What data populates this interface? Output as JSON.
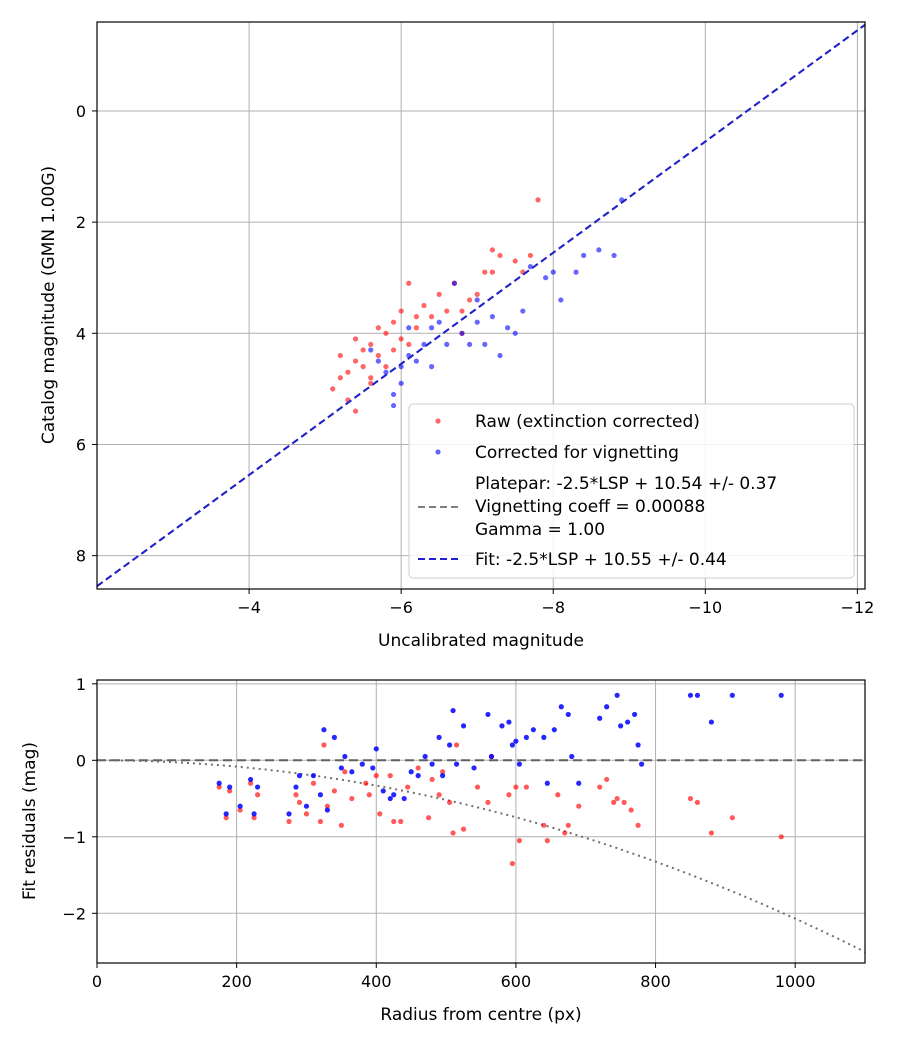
{
  "chart_data": [
    {
      "type": "scatter",
      "xlabel": "Uncalibrated magnitude",
      "ylabel": "Catalog magnitude (GMN 1.00G)",
      "xlim": [
        -2,
        -12.1
      ],
      "ylim": [
        8.6,
        -1.6
      ],
      "xticks": [
        -4,
        -6,
        -8,
        -10,
        -12
      ],
      "xtick_labels": [
        "−4",
        "−6",
        "−8",
        "−10",
        "−12"
      ],
      "yticks": [
        0,
        2,
        4,
        6,
        8
      ],
      "ytick_labels": [
        "0",
        "2",
        "4",
        "6",
        "8"
      ],
      "grid": true,
      "legend_position": "bottom-right",
      "colors": {
        "raw": "#ff0000",
        "corrected": "#0000ff",
        "fit": "#2020d0",
        "platepar": "#808080"
      },
      "series": [
        {
          "name": "Raw (extinction corrected)",
          "color": "#ff0000",
          "points": [
            [
              -5.1,
              5.0
            ],
            [
              -5.2,
              4.8
            ],
            [
              -5.3,
              4.7
            ],
            [
              -5.3,
              5.2
            ],
            [
              -5.4,
              4.5
            ],
            [
              -5.4,
              4.1
            ],
            [
              -5.5,
              4.6
            ],
            [
              -5.5,
              4.3
            ],
            [
              -5.6,
              4.2
            ],
            [
              -5.6,
              4.9
            ],
            [
              -5.7,
              3.9
            ],
            [
              -5.7,
              4.4
            ],
            [
              -5.8,
              4.6
            ],
            [
              -5.8,
              4.0
            ],
            [
              -5.9,
              3.8
            ],
            [
              -5.9,
              4.3
            ],
            [
              -6.0,
              4.1
            ],
            [
              -6.0,
              3.6
            ],
            [
              -6.1,
              3.1
            ],
            [
              -6.1,
              4.2
            ],
            [
              -6.2,
              3.9
            ],
            [
              -6.3,
              3.5
            ],
            [
              -6.4,
              3.7
            ],
            [
              -6.5,
              3.3
            ],
            [
              -6.6,
              3.6
            ],
            [
              -6.7,
              3.1
            ],
            [
              -6.8,
              3.6
            ],
            [
              -6.9,
              3.4
            ],
            [
              -7.0,
              3.3
            ],
            [
              -7.1,
              2.9
            ],
            [
              -7.2,
              2.9
            ],
            [
              -7.2,
              2.5
            ],
            [
              -7.3,
              2.6
            ],
            [
              -7.5,
              2.7
            ],
            [
              -7.6,
              2.9
            ],
            [
              -7.7,
              2.6
            ],
            [
              -7.8,
              1.6
            ],
            [
              -5.2,
              4.4
            ],
            [
              -5.4,
              5.4
            ],
            [
              -5.6,
              4.8
            ],
            [
              -6.2,
              3.7
            ],
            [
              -6.8,
              4.0
            ]
          ]
        },
        {
          "name": "Corrected for vignetting",
          "color": "#0000ff",
          "points": [
            [
              -5.6,
              4.3
            ],
            [
              -5.7,
              4.5
            ],
            [
              -5.8,
              4.7
            ],
            [
              -5.9,
              5.3
            ],
            [
              -5.9,
              5.1
            ],
            [
              -6.0,
              4.6
            ],
            [
              -6.1,
              4.4
            ],
            [
              -6.1,
              3.9
            ],
            [
              -6.2,
              4.5
            ],
            [
              -6.3,
              4.2
            ],
            [
              -6.4,
              4.6
            ],
            [
              -6.5,
              3.8
            ],
            [
              -6.6,
              4.2
            ],
            [
              -6.7,
              3.1
            ],
            [
              -6.8,
              4.0
            ],
            [
              -6.9,
              4.2
            ],
            [
              -7.0,
              3.8
            ],
            [
              -7.1,
              4.2
            ],
            [
              -7.2,
              3.7
            ],
            [
              -7.3,
              4.4
            ],
            [
              -7.4,
              3.9
            ],
            [
              -7.5,
              4.0
            ],
            [
              -7.6,
              3.6
            ],
            [
              -7.7,
              2.8
            ],
            [
              -7.9,
              3.0
            ],
            [
              -8.0,
              2.9
            ],
            [
              -8.1,
              3.4
            ],
            [
              -8.3,
              2.9
            ],
            [
              -8.4,
              2.6
            ],
            [
              -8.6,
              2.5
            ],
            [
              -8.8,
              2.6
            ],
            [
              -8.9,
              1.6
            ],
            [
              -6.0,
              4.9
            ],
            [
              -6.4,
              3.9
            ],
            [
              -7.0,
              3.4
            ]
          ]
        }
      ],
      "fit_line": {
        "slope": 1.0,
        "intercept": 10.55
      },
      "legend": [
        {
          "label": "Raw (extinction corrected)",
          "kind": "point",
          "color": "#ff0000"
        },
        {
          "label": "Corrected for vignetting",
          "kind": "point",
          "color": "#0000ff"
        },
        {
          "label_lines": [
            "Platepar: -2.5*LSP + 10.54 +/- 0.37",
            "Vignetting coeff = 0.00088",
            "Gamma = 1.00"
          ],
          "kind": "dashed-line",
          "color": "#808080"
        },
        {
          "label": "Fit: -2.5*LSP + 10.55 +/- 0.44",
          "kind": "dashed-line",
          "color": "#2020d0"
        }
      ]
    },
    {
      "type": "scatter",
      "xlabel": "Radius from centre (px)",
      "ylabel": "Fit residuals (mag)",
      "xlim": [
        0,
        1100
      ],
      "ylim": [
        -2.65,
        1.05
      ],
      "xticks": [
        0,
        200,
        400,
        600,
        800,
        1000
      ],
      "xtick_labels": [
        "0",
        "200",
        "400",
        "600",
        "800",
        "1000"
      ],
      "yticks": [
        1,
        0,
        -1,
        -2
      ],
      "ytick_labels": [
        "1",
        "0",
        "−1",
        "−2"
      ],
      "grid": true,
      "zero_line": 0,
      "vignetting_curve": {
        "coeff": 0.00088,
        "description": "model vignetting loss vs radius"
      },
      "series": [
        {
          "name": "Raw",
          "color": "#ff0000",
          "points": [
            [
              175,
              -0.35
            ],
            [
              185,
              -0.75
            ],
            [
              190,
              -0.4
            ],
            [
              205,
              -0.65
            ],
            [
              220,
              -0.3
            ],
            [
              225,
              -0.75
            ],
            [
              230,
              -0.45
            ],
            [
              275,
              -0.8
            ],
            [
              285,
              -0.45
            ],
            [
              290,
              -0.55
            ],
            [
              300,
              -0.7
            ],
            [
              310,
              -0.3
            ],
            [
              320,
              -0.8
            ],
            [
              325,
              0.2
            ],
            [
              330,
              -0.6
            ],
            [
              340,
              -0.4
            ],
            [
              350,
              -0.85
            ],
            [
              355,
              -0.15
            ],
            [
              365,
              -0.5
            ],
            [
              385,
              -0.3
            ],
            [
              390,
              -0.45
            ],
            [
              400,
              -0.2
            ],
            [
              405,
              -0.7
            ],
            [
              420,
              -0.2
            ],
            [
              425,
              -0.8
            ],
            [
              435,
              -0.8
            ],
            [
              445,
              -0.35
            ],
            [
              460,
              -0.1
            ],
            [
              475,
              -0.75
            ],
            [
              480,
              -0.25
            ],
            [
              490,
              -0.45
            ],
            [
              495,
              -0.15
            ],
            [
              505,
              -0.55
            ],
            [
              510,
              -0.95
            ],
            [
              515,
              0.2
            ],
            [
              525,
              -0.9
            ],
            [
              545,
              -0.35
            ],
            [
              560,
              -0.55
            ],
            [
              565,
              0.05
            ],
            [
              590,
              -0.45
            ],
            [
              595,
              -1.35
            ],
            [
              600,
              -0.35
            ],
            [
              605,
              -1.05
            ],
            [
              615,
              -0.35
            ],
            [
              640,
              -0.85
            ],
            [
              645,
              -1.05
            ],
            [
              660,
              -0.45
            ],
            [
              670,
              -0.95
            ],
            [
              675,
              -0.85
            ],
            [
              690,
              -0.6
            ],
            [
              720,
              -0.35
            ],
            [
              730,
              -0.25
            ],
            [
              740,
              -0.55
            ],
            [
              745,
              -0.5
            ],
            [
              755,
              -0.55
            ],
            [
              765,
              -0.65
            ],
            [
              775,
              -0.85
            ],
            [
              850,
              -0.5
            ],
            [
              860,
              -0.55
            ],
            [
              880,
              -0.95
            ],
            [
              910,
              -0.75
            ],
            [
              980,
              -1.0
            ]
          ]
        },
        {
          "name": "Corrected",
          "color": "#0000ff",
          "points": [
            [
              175,
              -0.3
            ],
            [
              185,
              -0.7
            ],
            [
              190,
              -0.35
            ],
            [
              205,
              -0.6
            ],
            [
              220,
              -0.25
            ],
            [
              225,
              -0.7
            ],
            [
              230,
              -0.35
            ],
            [
              275,
              -0.7
            ],
            [
              285,
              -0.35
            ],
            [
              290,
              -0.2
            ],
            [
              300,
              -0.6
            ],
            [
              310,
              -0.2
            ],
            [
              320,
              -0.45
            ],
            [
              325,
              0.4
            ],
            [
              330,
              -0.65
            ],
            [
              340,
              0.3
            ],
            [
              350,
              -0.1
            ],
            [
              355,
              0.05
            ],
            [
              365,
              -0.15
            ],
            [
              380,
              -0.05
            ],
            [
              395,
              -0.1
            ],
            [
              400,
              0.15
            ],
            [
              410,
              -0.4
            ],
            [
              420,
              -0.5
            ],
            [
              425,
              -0.45
            ],
            [
              440,
              -0.5
            ],
            [
              450,
              -0.15
            ],
            [
              460,
              -0.2
            ],
            [
              470,
              0.05
            ],
            [
              480,
              -0.05
            ],
            [
              490,
              0.3
            ],
            [
              495,
              -0.2
            ],
            [
              505,
              0.2
            ],
            [
              510,
              0.65
            ],
            [
              515,
              -0.05
            ],
            [
              525,
              0.45
            ],
            [
              540,
              -0.1
            ],
            [
              560,
              0.6
            ],
            [
              565,
              0.05
            ],
            [
              580,
              0.45
            ],
            [
              590,
              0.5
            ],
            [
              595,
              0.2
            ],
            [
              600,
              0.25
            ],
            [
              605,
              -0.05
            ],
            [
              615,
              0.3
            ],
            [
              625,
              0.4
            ],
            [
              640,
              0.3
            ],
            [
              645,
              -0.3
            ],
            [
              655,
              0.4
            ],
            [
              665,
              0.7
            ],
            [
              675,
              0.6
            ],
            [
              680,
              0.05
            ],
            [
              690,
              -0.3
            ],
            [
              720,
              0.55
            ],
            [
              730,
              0.7
            ],
            [
              745,
              0.85
            ],
            [
              750,
              0.45
            ],
            [
              760,
              0.5
            ],
            [
              770,
              0.6
            ],
            [
              775,
              0.2
            ],
            [
              780,
              -0.05
            ],
            [
              850,
              0.85
            ],
            [
              860,
              0.85
            ],
            [
              880,
              0.5
            ],
            [
              910,
              0.85
            ],
            [
              980,
              0.85
            ]
          ]
        }
      ]
    }
  ]
}
